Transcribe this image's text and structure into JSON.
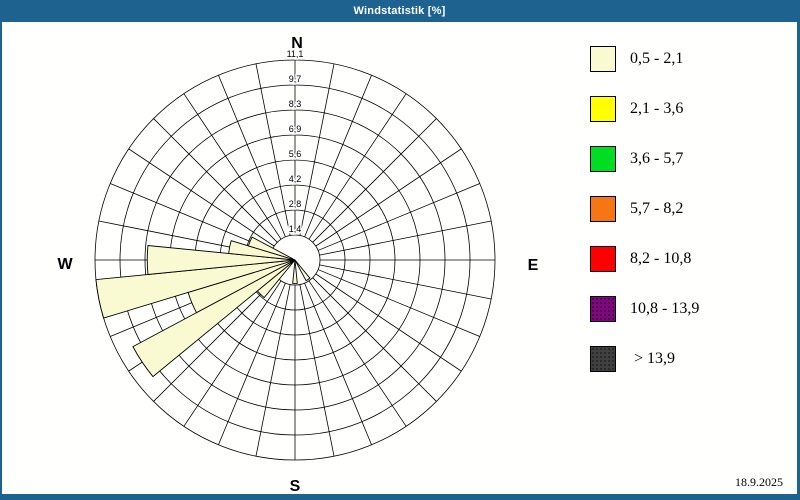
{
  "window": {
    "title": "Windstatistik [%]",
    "date": "18.9.2025",
    "titlebar_color": "#1e6390",
    "background_color": "#fffffe"
  },
  "chart_data": {
    "type": "wind_rose",
    "unit": "%",
    "sector_count": 32,
    "grid_color": "#000000",
    "max_value": 11.1,
    "ring_values": [
      1.4,
      2.8,
      4.2,
      5.6,
      6.9,
      8.3,
      9.7,
      11.1
    ],
    "ring_labels": [
      "1,4",
      "2,8",
      "4,2",
      "5,6",
      "6,9",
      "8,3",
      "9,7",
      "11,1"
    ],
    "compass": {
      "north": "N",
      "east": "E",
      "south": "S",
      "west": "W"
    },
    "series": [
      {
        "name": "0,5 - 2,1",
        "color": "#fafad2",
        "points": [
          {
            "direction_deg": 146.25,
            "value": 1.3
          },
          {
            "direction_deg": 180.0,
            "value": 1.3
          },
          {
            "direction_deg": 225.0,
            "value": 2.7
          },
          {
            "direction_deg": 236.25,
            "value": 10.2
          },
          {
            "direction_deg": 247.5,
            "value": 6.2
          },
          {
            "direction_deg": 258.75,
            "value": 11.1
          },
          {
            "direction_deg": 270.0,
            "value": 8.2
          },
          {
            "direction_deg": 281.25,
            "value": 3.7
          },
          {
            "direction_deg": 292.5,
            "value": 2.7
          }
        ]
      }
    ]
  },
  "legend": {
    "items": [
      {
        "label": "0,5 - 2,1",
        "color": "#fafad2",
        "dotted": false
      },
      {
        "label": "2,1 - 3,6",
        "color": "#ffff00",
        "dotted": false
      },
      {
        "label": "3,6 - 5,7",
        "color": "#00dd22",
        "dotted": false
      },
      {
        "label": "5,7 - 8,2",
        "color": "#f57613",
        "dotted": false
      },
      {
        "label": "8,2 - 10,8",
        "color": "#ff0000",
        "dotted": false
      },
      {
        "label": "10,8 - 13,9",
        "color": "#7d087d",
        "dotted": true
      },
      {
        "label": " > 13,9",
        "color": "#404040",
        "dotted": true
      }
    ]
  }
}
